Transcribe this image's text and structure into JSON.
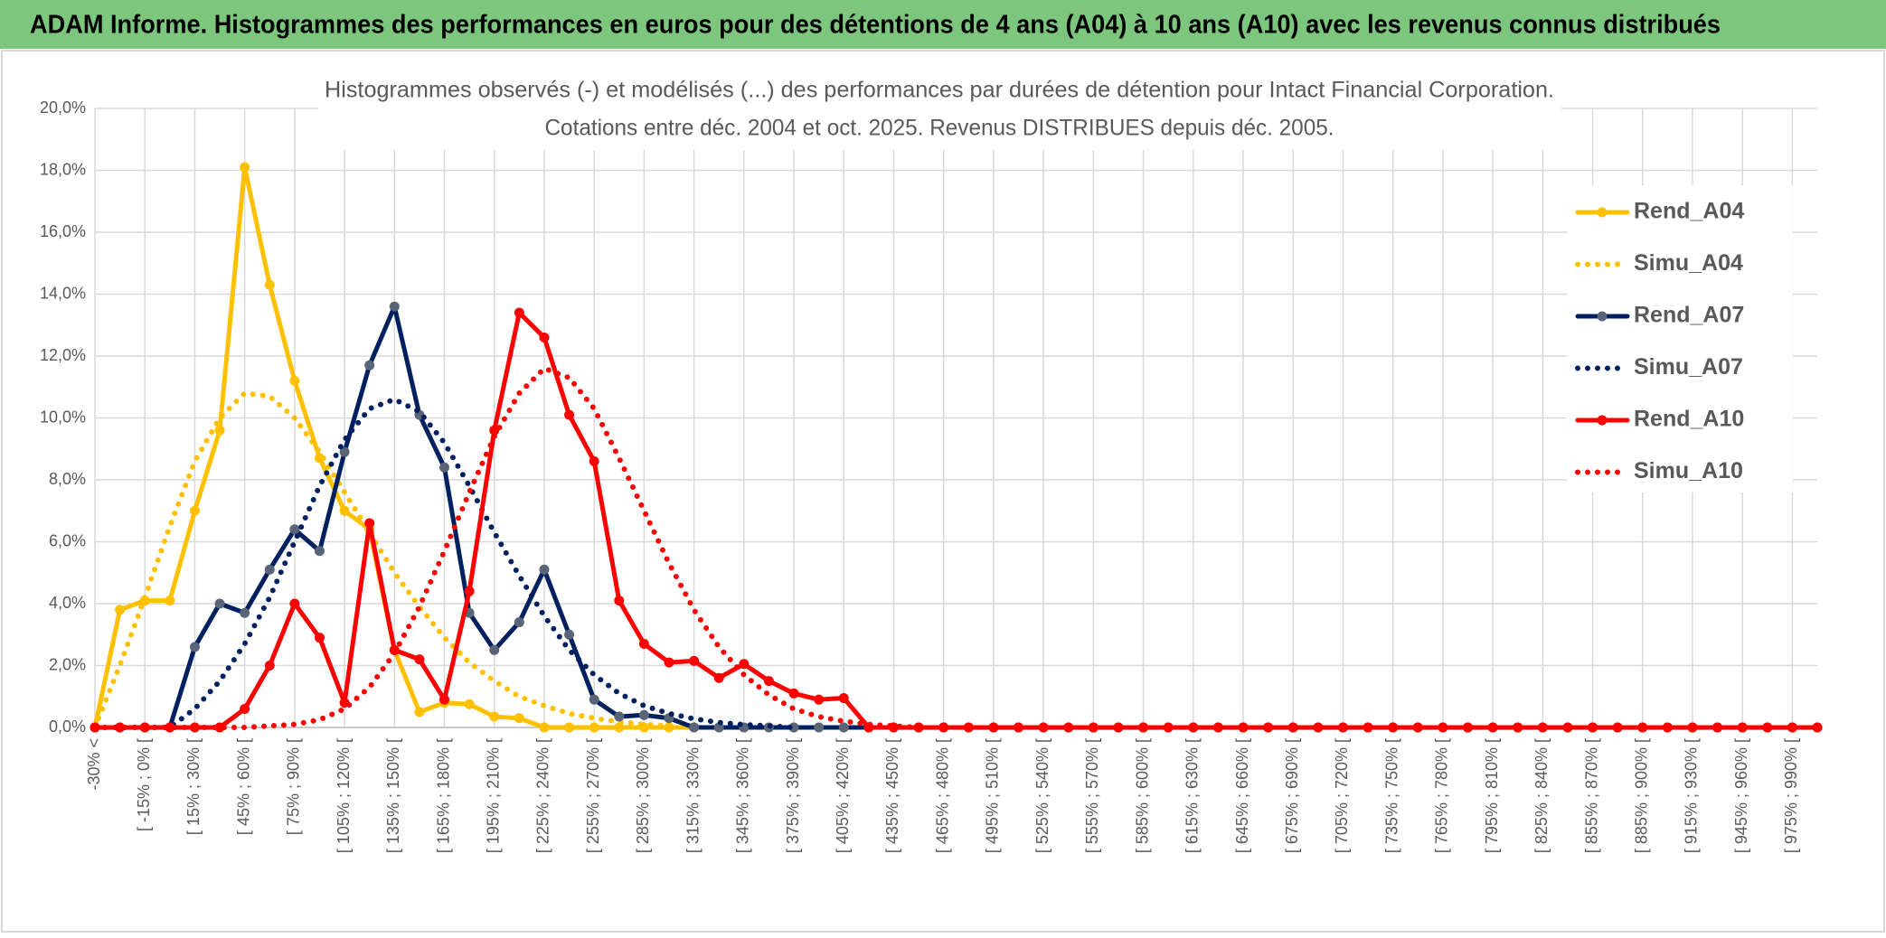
{
  "header": {
    "title": "ADAM Informe. Histogrammes des performances en euros pour des détentions de 4 ans (A04) à 10 ans (A10) avec les revenus connus distribués"
  },
  "chart_data": {
    "type": "line",
    "title": [
      "Histogrammes observés (-) et modélisés (...) des performances par durées de détention pour Intact Financial Corporation.",
      "Cotations entre déc. 2004 et oct. 2025. Revenus DISTRIBUES depuis déc. 2005."
    ],
    "categories": [
      "-30% <",
      null,
      "[ -15% ; 0% [",
      null,
      "[ 15% ; 30% [",
      null,
      "[ 45% ; 60% [",
      null,
      "[ 75% ; 90% [",
      null,
      "[ 105% ; 120% [",
      null,
      "[ 135% ; 150% [",
      null,
      "[ 165% ; 180% [",
      null,
      "[ 195% ; 210% [",
      null,
      "[ 225% ; 240% [",
      null,
      "[ 255% ; 270% [",
      null,
      "[ 285% ; 300% [",
      null,
      "[ 315% ; 330% [",
      null,
      "[ 345% ; 360% [",
      null,
      "[ 375% ; 390% [",
      null,
      "[ 405% ; 420% [",
      null,
      "[ 435% ; 450% [",
      null,
      "[ 465% ; 480% [",
      null,
      "[ 495% ; 510% [",
      null,
      "[ 525% ; 540% [",
      null,
      "[ 555% ; 570% [",
      null,
      "[ 585% ; 600% [",
      null,
      "[ 615% ; 630% [",
      null,
      "[ 645% ; 660% [",
      null,
      "[ 675% ; 690% [",
      null,
      "[ 705% ; 720% [",
      null,
      "[ 735% ; 750% [",
      null,
      "[ 765% ; 780% [",
      null,
      "[ 795% ; 810% [",
      null,
      "[ 825% ; 840% [",
      null,
      "[ 855% ; 870% [",
      null,
      "[ 885% ; 900% [",
      null,
      "[ 915% ; 930% [",
      null,
      "[ 945% ; 960% [",
      null,
      "[ 975% ; 990% [",
      null
    ],
    "series": [
      {
        "name": "Rend_A04",
        "color": "#ffc000",
        "style": "solid",
        "values": [
          0,
          3.8,
          4.1,
          4.1,
          7.0,
          9.6,
          18.1,
          14.3,
          11.2,
          8.7,
          7.0,
          6.4,
          2.5,
          0.5,
          0.8,
          0.75,
          0.35,
          0.3,
          0,
          0,
          0,
          0,
          0,
          0,
          0,
          0,
          0,
          0,
          0,
          0,
          0,
          0,
          0,
          0,
          0,
          0,
          0,
          0,
          0,
          0,
          0,
          0,
          0,
          0,
          0,
          0,
          0,
          0,
          0,
          0,
          0,
          0,
          0,
          0,
          0,
          0,
          0,
          0,
          0,
          0,
          0,
          0,
          0,
          0,
          0,
          0,
          0,
          0,
          0,
          0
        ]
      },
      {
        "name": "Simu_A04",
        "color": "#ffc000",
        "style": "dotted",
        "values": [
          0,
          2.0,
          4.2,
          6.5,
          8.6,
          10.0,
          10.8,
          10.7,
          10.0,
          8.9,
          7.6,
          6.3,
          5.0,
          3.9,
          2.9,
          2.1,
          1.5,
          1.0,
          0.7,
          0.45,
          0.3,
          0.18,
          0.1,
          0.05,
          null,
          null,
          null,
          null,
          null,
          null,
          null,
          null,
          null,
          null,
          null,
          null,
          null,
          null,
          null,
          null,
          null,
          null,
          null,
          null,
          null,
          null,
          null,
          null,
          null,
          null,
          null,
          null,
          null,
          null,
          null,
          null,
          null,
          null,
          null,
          null,
          null,
          null,
          null,
          null,
          null,
          null,
          null,
          null,
          null,
          null
        ]
      },
      {
        "name": "Rend_A07",
        "color": "#002060",
        "style": "solid",
        "marker": "#5a6478",
        "values": [
          0,
          0,
          0,
          0,
          2.6,
          4.0,
          3.7,
          5.1,
          6.4,
          5.7,
          8.9,
          11.7,
          13.6,
          10.1,
          8.4,
          3.7,
          2.5,
          3.4,
          5.1,
          3.0,
          0.9,
          0.35,
          0.4,
          0.3,
          0,
          0,
          0,
          0,
          0,
          0,
          0,
          0,
          0,
          0,
          0,
          0,
          0,
          0,
          0,
          0,
          0,
          0,
          0,
          0,
          0,
          0,
          0,
          0,
          0,
          0,
          0,
          0,
          0,
          0,
          0,
          0,
          0,
          0,
          0,
          0,
          0,
          0,
          0,
          0,
          0,
          0,
          0,
          0,
          0,
          0
        ]
      },
      {
        "name": "Simu_A07",
        "color": "#002060",
        "style": "dotted",
        "values": [
          0,
          0,
          0,
          0,
          0.6,
          1.5,
          2.7,
          4.2,
          6.0,
          7.8,
          9.3,
          10.3,
          10.6,
          10.2,
          9.2,
          7.8,
          6.3,
          4.9,
          3.6,
          2.5,
          1.7,
          1.1,
          0.7,
          0.45,
          0.28,
          0.16,
          0.09,
          0.05,
          0,
          null,
          null,
          null,
          null,
          null,
          null,
          null,
          null,
          null,
          null,
          null,
          null,
          null,
          null,
          null,
          null,
          null,
          null,
          null,
          null,
          null,
          null,
          null,
          null,
          null,
          null,
          null,
          null,
          null,
          null,
          null,
          null,
          null,
          null,
          null,
          null,
          null,
          null,
          null,
          null,
          null
        ]
      },
      {
        "name": "Rend_A10",
        "color": "#ff0000",
        "style": "solid",
        "values": [
          0,
          0,
          0,
          0,
          0,
          0,
          0.6,
          2.0,
          4.0,
          2.9,
          0.8,
          6.6,
          2.5,
          2.2,
          0.9,
          4.4,
          9.6,
          13.4,
          12.6,
          10.1,
          8.6,
          4.1,
          2.7,
          2.1,
          2.15,
          1.6,
          2.05,
          1.5,
          1.1,
          0.9,
          0.95,
          0,
          0,
          0,
          0,
          0,
          0,
          0,
          0,
          0,
          0,
          0,
          0,
          0,
          0,
          0,
          0,
          0,
          0,
          0,
          0,
          0,
          0,
          0,
          0,
          0,
          0,
          0,
          0,
          0,
          0,
          0,
          0,
          0,
          0,
          0,
          0,
          0,
          0,
          0
        ]
      },
      {
        "name": "Simu_A10",
        "color": "#ff0000",
        "style": "dotted",
        "values": [
          0,
          0,
          0,
          0,
          0,
          0,
          0,
          0.05,
          0.1,
          0.25,
          0.6,
          1.3,
          2.4,
          3.9,
          5.7,
          7.6,
          9.4,
          10.8,
          11.6,
          11.3,
          10.3,
          8.7,
          7.0,
          5.3,
          3.8,
          2.6,
          1.7,
          1.05,
          0.6,
          0.35,
          0.2,
          0.1,
          0.05,
          0,
          null,
          null,
          null,
          null,
          null,
          null,
          null,
          null,
          null,
          null,
          null,
          null,
          null,
          null,
          null,
          null,
          null,
          null,
          null,
          null,
          null,
          null,
          null,
          null,
          null,
          null,
          null,
          null,
          null,
          null,
          null,
          null,
          null,
          null,
          null,
          null
        ]
      }
    ],
    "ylim": [
      0,
      20
    ],
    "yticks": [
      {
        "value": 0,
        "label": "0,0%"
      },
      {
        "value": 2,
        "label": "2,0%"
      },
      {
        "value": 4,
        "label": "4,0%"
      },
      {
        "value": 6,
        "label": "6,0%"
      },
      {
        "value": 8,
        "label": "8,0%"
      },
      {
        "value": 10,
        "label": "10,0%"
      },
      {
        "value": 12,
        "label": "12,0%"
      },
      {
        "value": 14,
        "label": "14,0%"
      },
      {
        "value": 16,
        "label": "16,0%"
      },
      {
        "value": 18,
        "label": "18,0%"
      },
      {
        "value": 20,
        "label": "20,0%"
      }
    ],
    "grid": true,
    "legend": "right"
  }
}
